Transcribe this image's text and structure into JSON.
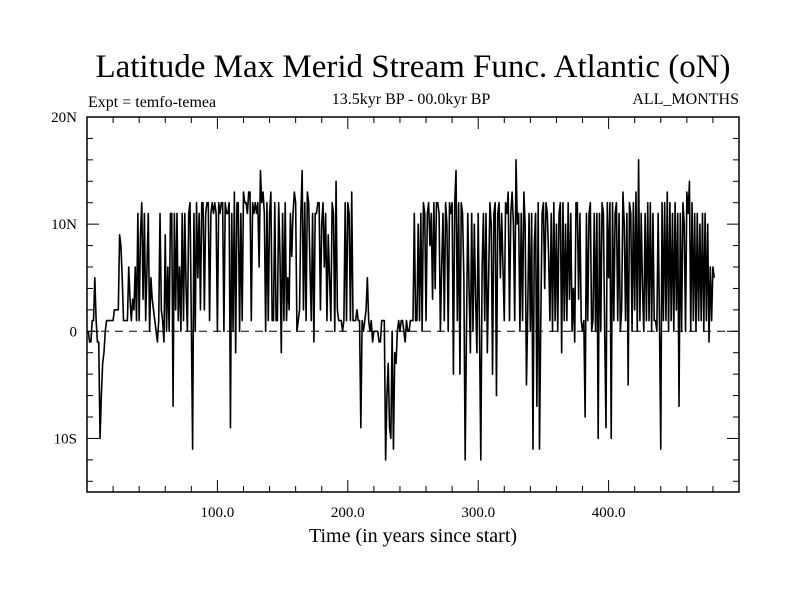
{
  "chart_data": {
    "type": "line",
    "title": "Latitude Max Merid Stream Func. Atlantic (oN)",
    "subtitle_left": "Expt = temfo-temea",
    "subtitle_center": "13.5kyr BP - 00.0kyr BP",
    "subtitle_right": "ALL_MONTHS",
    "xlabel": "Time (in years since start)",
    "ylabel": "",
    "xlim": [
      0,
      500
    ],
    "ylim": [
      -15,
      20
    ],
    "x_ticks": [
      100,
      200,
      300,
      400
    ],
    "x_tick_labels": [
      "100.0",
      "200.0",
      "300.0",
      "400.0"
    ],
    "y_ticks": [
      -10,
      0,
      10,
      20
    ],
    "y_tick_labels": [
      "10S",
      "0",
      "10N",
      "20N"
    ],
    "reference_line": 0,
    "grid": false,
    "series": [
      {
        "name": "",
        "color": "#000000",
        "start_year": 1,
        "step": 1,
        "values": [
          0,
          -1,
          -1,
          1,
          1,
          5,
          1,
          -1,
          -1,
          -10,
          -6,
          -3,
          -2,
          0,
          1,
          1,
          1,
          1,
          1,
          1,
          2,
          2,
          2,
          2,
          9,
          8,
          5,
          1,
          1,
          1,
          1,
          6,
          3,
          1,
          3,
          2,
          6,
          1,
          11,
          1,
          9,
          12,
          3,
          11,
          1,
          6,
          11,
          0,
          5,
          3,
          2,
          1,
          0,
          -1,
          1,
          11,
          2,
          1,
          -1,
          9,
          0,
          6,
          0,
          11,
          11,
          -7,
          11,
          2,
          11,
          1,
          6,
          0,
          11,
          1,
          11,
          4,
          0,
          11,
          12,
          1,
          -11,
          11,
          0,
          12,
          5,
          11,
          2,
          12,
          12,
          2,
          11,
          12,
          12,
          1,
          11,
          12,
          11,
          12,
          11,
          0,
          12,
          11,
          12,
          12,
          0,
          12,
          11,
          11,
          12,
          -9,
          11,
          0,
          13,
          -2,
          12,
          12,
          0,
          11,
          1,
          13,
          12,
          12,
          11,
          13,
          13,
          1,
          12,
          11,
          12,
          11,
          12,
          6,
          15,
          12,
          13,
          11,
          0,
          12,
          1,
          11,
          13,
          1,
          1,
          12,
          1,
          1,
          12,
          7,
          -2,
          11,
          1,
          12,
          1,
          5,
          2,
          11,
          7,
          11,
          13,
          12,
          0,
          1,
          2,
          11,
          15,
          2,
          12,
          1,
          13,
          12,
          6,
          1,
          11,
          -1,
          11,
          11,
          12,
          12,
          2,
          10,
          12,
          6,
          11,
          1,
          9,
          5,
          1,
          12,
          11,
          0,
          14,
          2,
          1,
          1,
          1,
          0,
          1,
          12,
          1,
          12,
          11,
          1,
          13,
          1,
          1,
          1,
          2,
          1,
          1,
          -9,
          1,
          0,
          1,
          2,
          5,
          1,
          0,
          1,
          -1,
          0,
          0,
          0,
          0,
          -1,
          -1,
          1,
          1,
          1,
          -12,
          -6,
          -3,
          -9,
          -10,
          0,
          -11,
          -2,
          -3,
          0,
          1,
          0,
          1,
          1,
          0,
          -1,
          1,
          0,
          0,
          1,
          1,
          1,
          11,
          1,
          1,
          10,
          1,
          11,
          0,
          12,
          11,
          1,
          11,
          12,
          8,
          11,
          3,
          12,
          4,
          12,
          12,
          11,
          0,
          6,
          11,
          1,
          12,
          10,
          0,
          12,
          11,
          12,
          -4,
          12,
          15,
          1,
          12,
          -4,
          12,
          11,
          5,
          -12,
          0,
          11,
          4,
          -2,
          11,
          0,
          10,
          3,
          -2,
          11,
          0,
          -12,
          6,
          11,
          1,
          11,
          -2,
          5,
          12,
          10,
          -4,
          11,
          12,
          -6,
          11,
          12,
          5,
          11,
          6,
          1,
          12,
          11,
          13,
          1,
          11,
          13,
          10,
          1,
          16,
          10,
          11,
          0,
          11,
          1,
          13,
          10,
          -5,
          2,
          11,
          0,
          11,
          -11,
          8,
          11,
          -7,
          12,
          -11,
          1,
          11,
          12,
          4,
          12,
          11,
          7,
          1,
          11,
          0,
          12,
          1,
          10,
          0,
          11,
          12,
          -2,
          12,
          1,
          10,
          1,
          12,
          3,
          11,
          0,
          4,
          -1,
          12,
          12,
          3,
          11,
          1,
          0,
          1,
          -8,
          11,
          1,
          11,
          12,
          0,
          1,
          11,
          0,
          11,
          -10,
          11,
          0,
          12,
          11,
          0,
          -9,
          12,
          5,
          12,
          -10,
          12,
          1,
          11,
          12,
          1,
          11,
          0,
          2,
          13,
          10,
          1,
          11,
          -5,
          12,
          11,
          0,
          12,
          2,
          13,
          0,
          16,
          1,
          11,
          4,
          0,
          11,
          1,
          12,
          1,
          12,
          0,
          11,
          1,
          1,
          0,
          11,
          1,
          -11,
          12,
          1,
          12,
          1,
          13,
          0,
          12,
          1,
          11,
          0,
          12,
          2,
          11,
          -7,
          11,
          0,
          12,
          10,
          0,
          13,
          11,
          14,
          0,
          12,
          1,
          11,
          0,
          11,
          1,
          10,
          1,
          11,
          0,
          11,
          1,
          10,
          -1,
          6,
          1,
          6,
          5
        ]
      }
    ]
  }
}
